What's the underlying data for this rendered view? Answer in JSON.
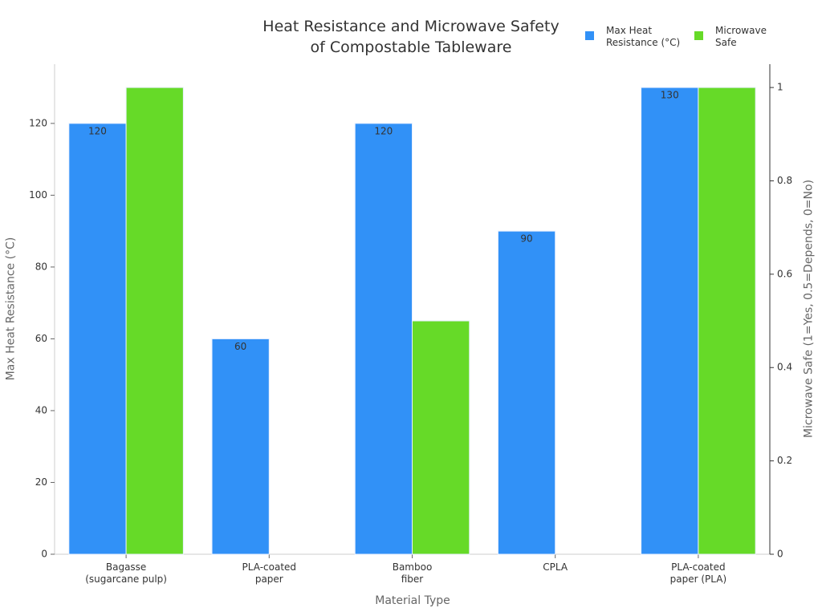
{
  "chart_data": {
    "type": "bar",
    "title": "Heat Resistance and Microwave Safety\nof Compostable Tableware",
    "x_label": "Material Type",
    "y_label": "Max Heat Resistance (°C)",
    "y2_label": "Microwave Safe (1=Yes, 0.5=Depends, 0=No)",
    "categories": [
      "Bagasse\n(sugarcane pulp)",
      "PLA-coated\npaper",
      "Bamboo\nfiber",
      "CPLA",
      "PLA-coated\npaper (PLA)"
    ],
    "series": [
      {
        "name": "Max Heat\nResistance (°C)",
        "color": "#3191f7",
        "values": [
          120,
          60,
          120,
          90,
          130
        ],
        "data_labels": true
      },
      {
        "name": "Microwave\nSafe",
        "color": "#66da28",
        "values": [
          1,
          0,
          0.5,
          0,
          1
        ],
        "axis": "y2",
        "data_labels": false
      }
    ],
    "ylim": [
      0,
      136.5
    ],
    "yticks": [
      0,
      20,
      40,
      60,
      80,
      100,
      120
    ],
    "y2lim": [
      0,
      1.05
    ],
    "y2ticks": [
      0,
      0.2,
      0.4,
      0.6,
      0.8,
      1
    ]
  }
}
